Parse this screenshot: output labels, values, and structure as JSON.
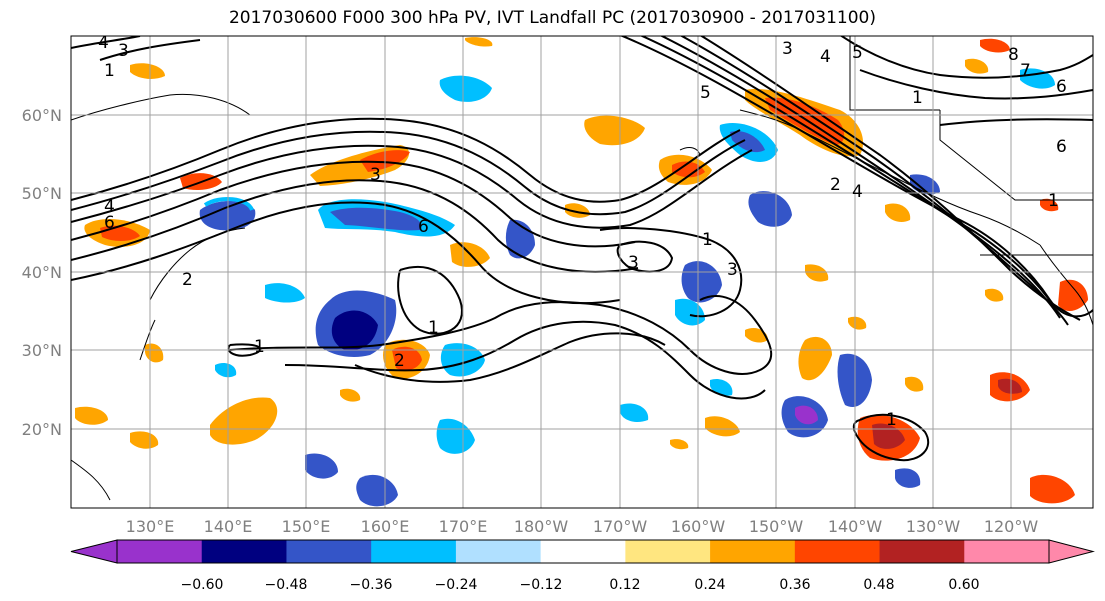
{
  "title": "2017030600 F000 300 hPa PV, IVT Landfall PC (2017030900 - 2017031100)",
  "lat_labels": [
    "60°N",
    "50°N",
    "40°N",
    "30°N",
    "20°N"
  ],
  "lon_labels": [
    "130°E",
    "140°E",
    "150°E",
    "160°E",
    "170°E",
    "180°W",
    "170°W",
    "160°W",
    "150°W",
    "140°W",
    "130°W",
    "120°W"
  ],
  "colorbar": {
    "ticks": [
      "−0.60",
      "−0.48",
      "−0.36",
      "−0.24",
      "−0.12",
      "0.12",
      "0.24",
      "0.36",
      "0.48",
      "0.60"
    ],
    "colors": [
      "#9932CC",
      "#000080",
      "#3455C8",
      "#00BFFF",
      "#B0E0FF",
      "#FFFFFF",
      "#FFE680",
      "#FFA500",
      "#FF4500",
      "#B22222",
      "#FF88AA"
    ]
  },
  "contour_labels": [
    "3",
    "4",
    "1",
    "3",
    "4",
    "5",
    "8",
    "7",
    "6",
    "1",
    "6",
    "4",
    "6",
    "5",
    "3",
    "2",
    "6",
    "1",
    "3",
    "1",
    "2",
    "1",
    "3",
    "1",
    "2",
    "4",
    "1"
  ],
  "colors": {
    "grid": "#a0a0a0",
    "contour": "#000000",
    "ocean": "#ffffff"
  }
}
